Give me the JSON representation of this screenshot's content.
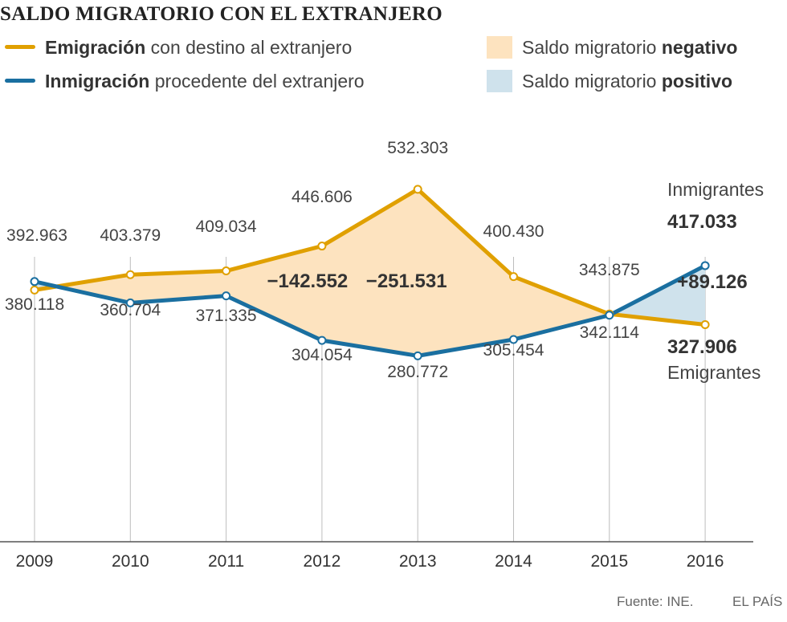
{
  "title": "SALDO MIGRATORIO CON EL EXTRANJERO",
  "legend": {
    "emigration": {
      "bold": "Emigración",
      "rest": " con destino al extranjero",
      "color": "#e0a000"
    },
    "immigration": {
      "bold": "Inmigración",
      "rest": " procedente del extranjero",
      "color": "#1a6fa0"
    },
    "negative": {
      "text": "Saldo migratorio ",
      "bold": "negativo",
      "color": "#fde3bf"
    },
    "positive": {
      "text": "Saldo migratorio ",
      "bold": "positivo",
      "color": "#cfe2ec"
    }
  },
  "chart_data": {
    "type": "line",
    "title": "SALDO MIGRATORIO CON EL EXTRANJERO",
    "categories": [
      "2009",
      "2010",
      "2011",
      "2012",
      "2013",
      "2014",
      "2015",
      "2016"
    ],
    "series": [
      {
        "name": "Emigración con destino al extranjero",
        "values": [
          380118,
          403379,
          409034,
          446606,
          532303,
          400430,
          343875,
          327906
        ],
        "labels": [
          "380.118",
          "403.379",
          "409.034",
          "446.606",
          "532.303",
          "400.430",
          "343.875",
          "327.906"
        ]
      },
      {
        "name": "Inmigración procedente del extranjero",
        "values": [
          392963,
          360704,
          371335,
          304054,
          280772,
          305454,
          342114,
          417033
        ],
        "labels": [
          "392.963",
          "360.704",
          "371.335",
          "304.054",
          "280.772",
          "305.454",
          "342.114",
          "417.033"
        ]
      }
    ],
    "ylim": [
      0,
      600000
    ],
    "annotations": [
      {
        "category": "2012",
        "text": "−142.552"
      },
      {
        "category": "2013",
        "text": "−251.531"
      },
      {
        "category": "2016",
        "text": "+89.126"
      }
    ],
    "end_labels": {
      "immigrants": "Inmigrantes",
      "emigrants": "Emigrantes"
    }
  },
  "footer": {
    "source": "Fuente: INE.",
    "brand": "EL PAÍS"
  }
}
